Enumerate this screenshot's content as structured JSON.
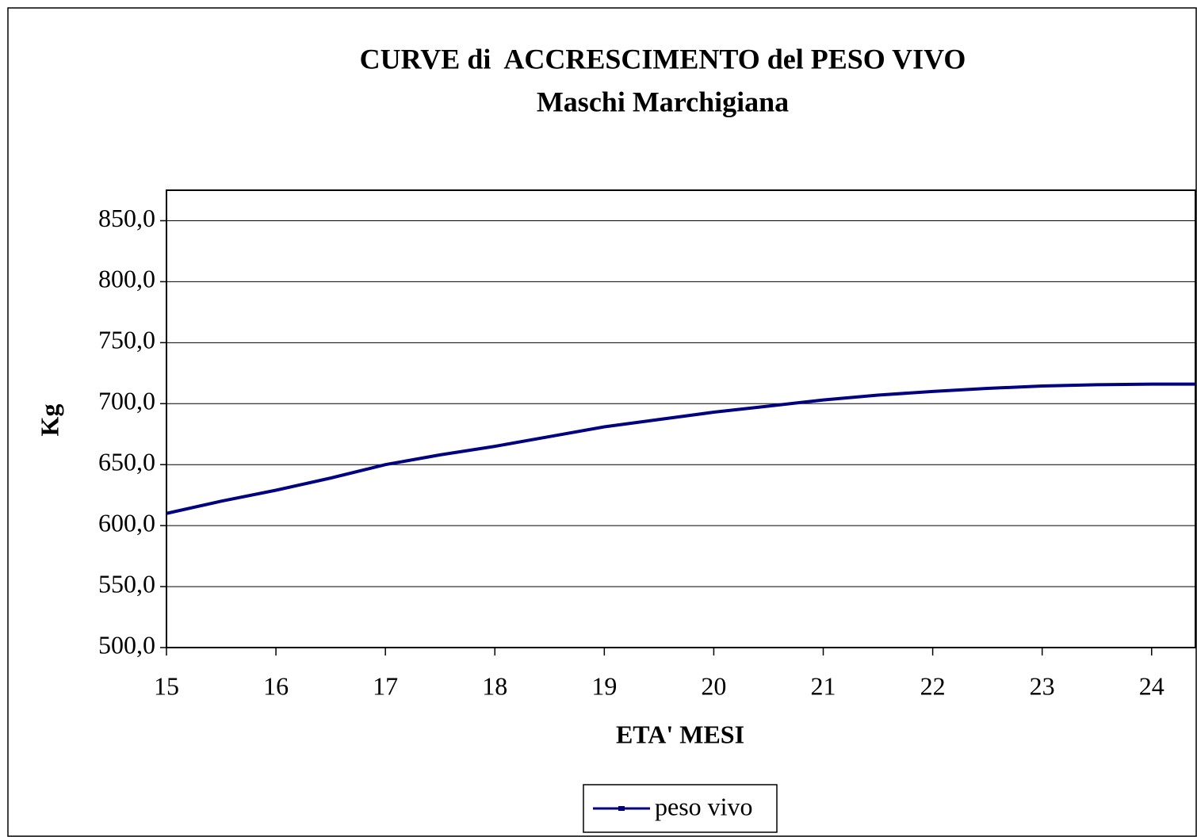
{
  "chart_data": {
    "type": "line",
    "title": "CURVE di  ACCRESCIMENTO del PESO VIVO",
    "subtitle": "Maschi Marchigiana",
    "x_label": "ETA' MESI",
    "y_label": "Kg",
    "x": [
      15,
      15.5,
      16,
      16.5,
      17,
      17.5,
      18,
      18.5,
      19,
      19.5,
      20,
      20.5,
      21,
      21.5,
      22,
      22.5,
      23,
      23.5,
      24,
      24.4
    ],
    "series": [
      {
        "name": "peso vivo",
        "color": "#000080",
        "values": [
          610,
          620,
          629,
          639,
          650,
          658,
          665,
          673,
          681,
          687,
          693,
          698,
          703,
          707,
          710,
          712.5,
          714.5,
          715.5,
          716,
          716
        ]
      }
    ],
    "xlim": [
      15,
      24.4
    ],
    "xticks": [
      15,
      16,
      17,
      18,
      19,
      20,
      21,
      22,
      23,
      24
    ],
    "ylim": [
      500,
      875
    ],
    "yticks": [
      {
        "value": 500,
        "label": "500,0"
      },
      {
        "value": 550,
        "label": "550,0"
      },
      {
        "value": 600,
        "label": "600,0"
      },
      {
        "value": 650,
        "label": "650,0"
      },
      {
        "value": 700,
        "label": "700,0"
      },
      {
        "value": 750,
        "label": "750,0"
      },
      {
        "value": 800,
        "label": "800,0"
      },
      {
        "value": 850,
        "label": "850,0"
      }
    ],
    "grid": true,
    "legend": "bottom"
  }
}
